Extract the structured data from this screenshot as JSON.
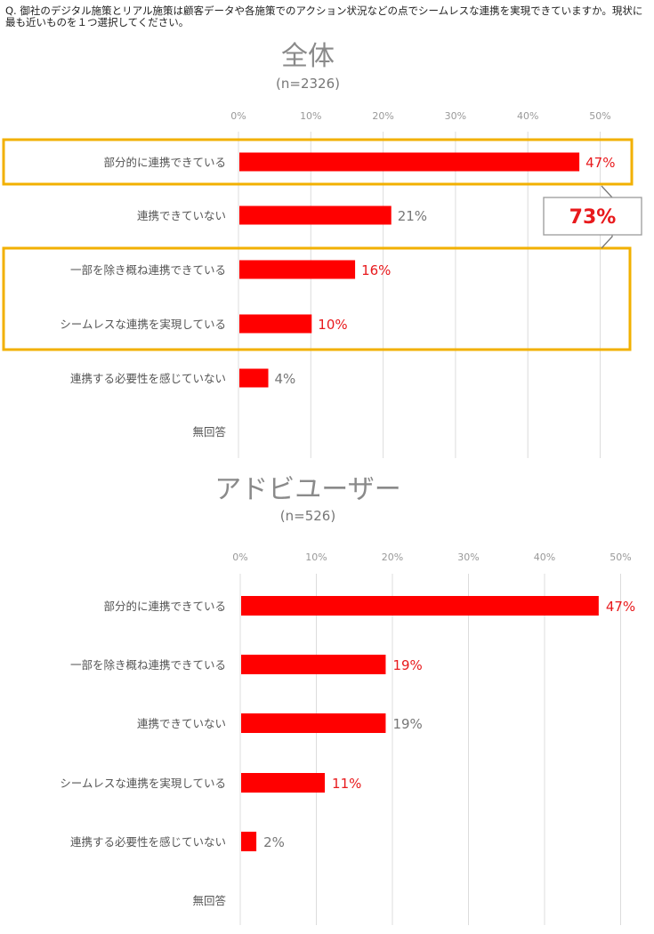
{
  "question": "Q. 御社のデジタル施策とリアル施策は顧客データや各施策でのアクション状況などの点でシームレスな連携を実現できていますか。現状に最も近いものを１つ選択してください。",
  "colors": {
    "bar": "#ff0000",
    "highlight_value": "#e8191c",
    "plain_value": "#777777",
    "box": "#f2b000",
    "grid": "#dcdcdc"
  },
  "chart_data": [
    {
      "type": "bar",
      "orientation": "horizontal",
      "title": "全体",
      "subtitle": "(n=2326)",
      "ticks": [
        "0%",
        "10%",
        "20%",
        "30%",
        "40%",
        "50%"
      ],
      "xlim": [
        0,
        55
      ],
      "categories": [
        "部分的に連携できている",
        "連携できていない",
        "一部を除き概ね連携できている",
        "シームレスな連携を実現している",
        "連携する必要性を感じていない",
        "無回答"
      ],
      "values": [
        47,
        21,
        16,
        10,
        4,
        null
      ],
      "labels": [
        "47%",
        "21%",
        "16%",
        "10%",
        "4%",
        ""
      ],
      "highlighted": [
        true,
        false,
        true,
        true,
        false,
        false
      ],
      "callout": "73%"
    },
    {
      "type": "bar",
      "orientation": "horizontal",
      "title": "アドビユーザー",
      "subtitle": "(n=526)",
      "ticks": [
        "0%",
        "10%",
        "20%",
        "30%",
        "40%",
        "50%"
      ],
      "xlim": [
        0,
        55
      ],
      "categories": [
        "部分的に連携できている",
        "一部を除き概ね連携できている",
        "連携できていない",
        "シームレスな連携を実現している",
        "連携する必要性を感じていない",
        "無回答"
      ],
      "values": [
        47,
        19,
        19,
        11,
        2,
        null
      ],
      "labels": [
        "47%",
        "19%",
        "19%",
        "11%",
        "2%",
        ""
      ],
      "highlighted": [
        true,
        true,
        false,
        true,
        false,
        false
      ]
    }
  ]
}
